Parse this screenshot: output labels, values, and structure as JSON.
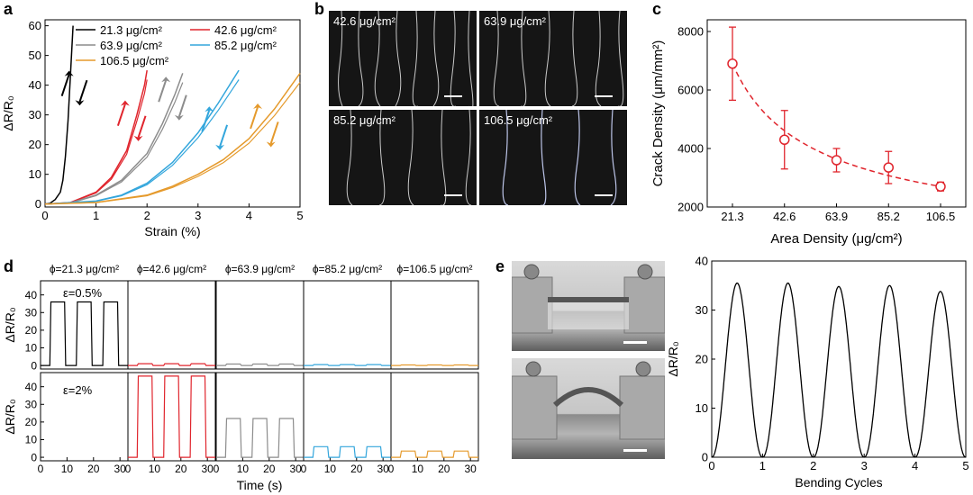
{
  "panel_labels": {
    "a": "a",
    "b": "b",
    "c": "c",
    "d": "d",
    "e": "e"
  },
  "densities": [
    "21.3 μg/cm²",
    "42.6 μg/cm²",
    "63.9 μg/cm²",
    "85.2 μg/cm²",
    "106.5 μg/cm²"
  ],
  "colors": {
    "d21": "#000000",
    "d42": "#e0252d",
    "d64": "#8c8c8c",
    "d85": "#33a6dc",
    "d106": "#e59a2c"
  },
  "micrographs": [
    {
      "label": "42.6 μg/cm²"
    },
    {
      "label": "63.9 μg/cm²"
    },
    {
      "label": "85.2 μg/cm²"
    },
    {
      "label": "106.5 μg/cm²"
    }
  ],
  "panel_d": {
    "titles": [
      "ϕ=21.3 μg/cm²",
      "ϕ=42.6 μg/cm²",
      "ϕ=63.9 μg/cm²",
      "ϕ=85.2 μg/cm²",
      "ϕ=106.5 μg/cm²"
    ],
    "strain_labels": [
      "ε=0.5%",
      "ε=2%"
    ],
    "ylabel": "ΔR/R₀",
    "xlabel": "Time (s)"
  },
  "chart_data": [
    {
      "id": "a",
      "type": "line",
      "xlabel": "Strain (%)",
      "ylabel": "ΔR/R₀",
      "xlim": [
        0,
        5
      ],
      "ylim": [
        -1,
        62
      ],
      "xticks": [
        0,
        1,
        2,
        3,
        4,
        5
      ],
      "yticks": [
        0,
        10,
        20,
        30,
        40,
        50,
        60
      ],
      "legend_position": "top-left",
      "series": [
        {
          "name": "21.3 μg/cm²",
          "color": "#000000",
          "x": [
            0,
            0.1,
            0.2,
            0.3,
            0.35,
            0.4,
            0.45,
            0.5,
            0.55
          ],
          "y": [
            0,
            0.3,
            1.5,
            4,
            8,
            16,
            28,
            44,
            60
          ]
        },
        {
          "name": "42.6 μg/cm²",
          "color": "#e0252d",
          "x": [
            0,
            0.5,
            1,
            1.3,
            1.6,
            1.8,
            1.95,
            2.0
          ],
          "y": [
            0,
            0.5,
            4,
            9,
            18,
            30,
            40,
            45
          ]
        },
        {
          "name": "63.9 μg/cm²",
          "color": "#8c8c8c",
          "x": [
            0,
            0.5,
            1,
            1.5,
            2,
            2.3,
            2.55,
            2.7
          ],
          "y": [
            0,
            0.4,
            3,
            8,
            17,
            27,
            37,
            44
          ]
        },
        {
          "name": "85.2 μg/cm²",
          "color": "#33a6dc",
          "x": [
            0,
            1,
            1.5,
            2,
            2.5,
            3,
            3.4,
            3.8
          ],
          "y": [
            0,
            1,
            3,
            7,
            14,
            24,
            34,
            45
          ]
        },
        {
          "name": "106.5 μg/cm²",
          "color": "#e59a2c",
          "x": [
            0,
            1,
            2,
            2.5,
            3,
            3.5,
            4,
            4.5,
            5
          ],
          "y": [
            0,
            0.5,
            3,
            6,
            10,
            15,
            22,
            32,
            44
          ]
        }
      ]
    },
    {
      "id": "c",
      "type": "scatter",
      "xlabel": "Area Density (μg/cm²)",
      "ylabel": "Crack Density (μm/mm²)",
      "categories": [
        21.3,
        42.6,
        63.9,
        85.2,
        106.5
      ],
      "values": [
        6900,
        4300,
        3600,
        3350,
        2700
      ],
      "errors": [
        1250,
        1000,
        400,
        550,
        150
      ],
      "fit": "dashed",
      "ylim": [
        2000,
        8400
      ],
      "yticks": [
        2000,
        4000,
        6000,
        8000
      ],
      "color": "#e0252d"
    },
    {
      "id": "d",
      "type": "line",
      "xlabel": "Time (s)",
      "ylabel": "ΔR/R₀",
      "xlim": [
        0,
        33
      ],
      "ylim": [
        -2,
        48
      ],
      "xticks": [
        0,
        10,
        20,
        30
      ],
      "yticks": [
        0,
        10,
        20,
        30,
        40
      ],
      "rows": [
        {
          "strain": "ε=0.5%",
          "amplitudes": [
            36,
            1,
            0.8,
            0.5,
            0.3
          ]
        },
        {
          "strain": "ε=2%",
          "amplitudes": [
            null,
            46,
            22,
            6,
            3.5
          ]
        }
      ],
      "pulses": [
        [
          3.5,
          9.5
        ],
        [
          13.5,
          19.5
        ],
        [
          23.5,
          29.5
        ]
      ]
    },
    {
      "id": "e",
      "type": "line",
      "xlabel": "Bending Cycles",
      "ylabel": "ΔR/R₀",
      "xlim": [
        0,
        5
      ],
      "ylim": [
        0,
        40
      ],
      "xticks": [
        0,
        1,
        2,
        3,
        4,
        5
      ],
      "yticks": [
        0,
        10,
        20,
        30,
        40
      ],
      "peaks": [
        35.5,
        35.5,
        34.8,
        35,
        33.8
      ]
    }
  ]
}
